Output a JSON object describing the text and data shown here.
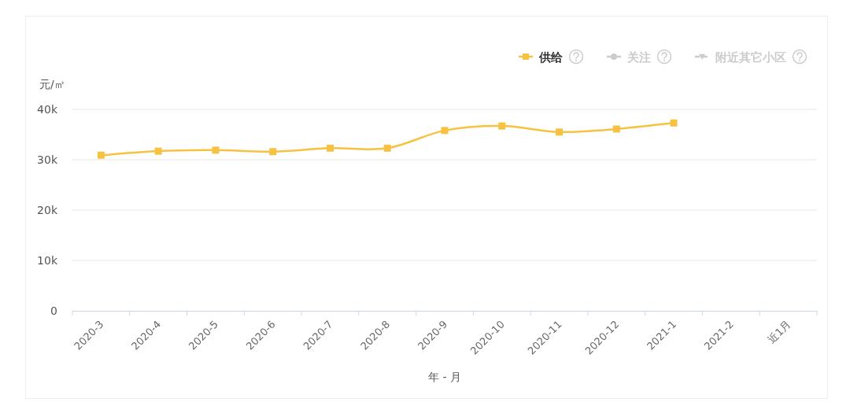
{
  "chart_data": {
    "type": "line",
    "ylabel": "元/㎡",
    "xlabel": "年 - 月",
    "categories": [
      "2020-3",
      "2020-4",
      "2020-5",
      "2020-6",
      "2020-7",
      "2020-8",
      "2020-9",
      "2020-10",
      "2020-11",
      "2020-12",
      "2021-1",
      "2021-2",
      "近1月"
    ],
    "series": [
      {
        "name": "供给",
        "color": "#f7c242",
        "marker": "square",
        "values": [
          30900,
          31700,
          31900,
          31600,
          32300,
          32300,
          35800,
          36700,
          35500,
          36100,
          37300,
          null,
          null
        ]
      },
      {
        "name": "关注",
        "color": "#cccccc",
        "marker": "circle",
        "values": [
          null,
          null,
          null,
          null,
          null,
          null,
          null,
          null,
          null,
          null,
          null,
          null,
          null
        ]
      },
      {
        "name": "附近其它小区",
        "color": "#cccccc",
        "marker": "triangle",
        "line_style": "dashed",
        "values": [
          null,
          null,
          null,
          null,
          null,
          null,
          null,
          null,
          null,
          null,
          null,
          null,
          null
        ]
      }
    ],
    "ylim": [
      0,
      40000
    ],
    "yticks": [
      0,
      {
        "value": 10000,
        "label": "10k"
      },
      {
        "value": 20000,
        "label": "20k"
      },
      {
        "value": 30000,
        "label": "30k"
      },
      {
        "value": 40000,
        "label": "40k"
      }
    ],
    "grid": "y",
    "legend": "top right"
  }
}
